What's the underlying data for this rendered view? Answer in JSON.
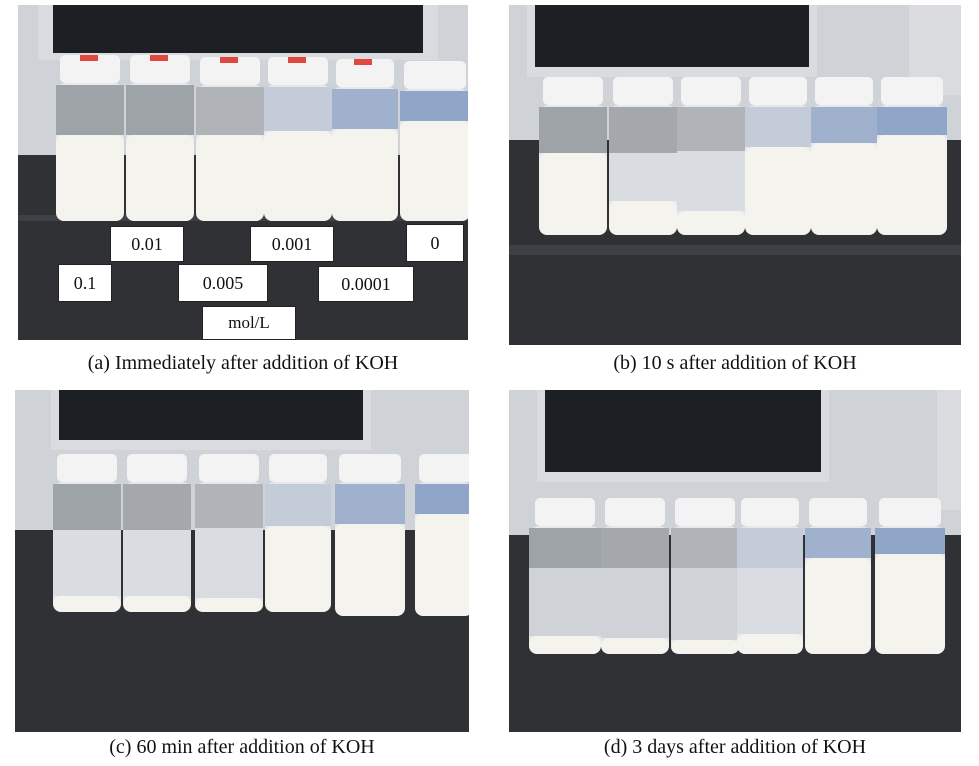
{
  "panels": {
    "a": {
      "caption": "(a) Immediately after addition of KOH"
    },
    "b": {
      "caption": "(b) 10 s after addition of KOH"
    },
    "c": {
      "caption": "(c) 60 min after addition of KOH"
    },
    "d": {
      "caption": "(d) 3 days after addition of KOH"
    }
  },
  "concentration_labels": {
    "c1": "0.1",
    "c2": "0.01",
    "c3": "0.005",
    "c4": "0.001",
    "c5": "0.0001",
    "c6": "0",
    "unit": "mol/L"
  },
  "colors": {
    "bench": "#2f3134",
    "wall": "#cfd2d6",
    "cap": "#f3f3f3",
    "cap_tape": "#e0473f",
    "milky": "#f4f3ee",
    "clear_liquid": "#d9dde2",
    "monitor": "#1c1f24"
  }
}
